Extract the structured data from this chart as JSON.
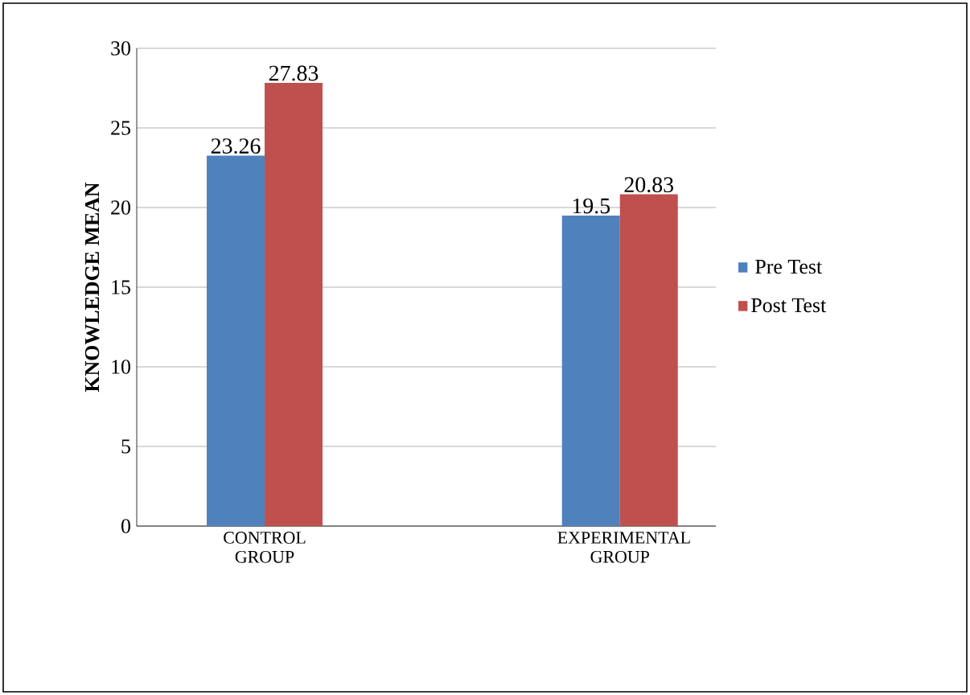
{
  "chart_data": {
    "type": "bar",
    "ylabel": "KNOWLEDGE MEAN",
    "categories": [
      "CONTROL GROUP",
      "EXPERIMENTAL GROUP"
    ],
    "series": [
      {
        "name": "Pre Test",
        "color": "#4f81bd",
        "values": [
          23.26,
          19.5
        ]
      },
      {
        "name": "Post Test",
        "color": "#c0504d",
        "values": [
          27.83,
          20.83
        ]
      }
    ],
    "ylim": [
      0,
      30
    ],
    "yticks": [
      0,
      5,
      10,
      15,
      20,
      25,
      30
    ],
    "grid": "y",
    "legend": "right",
    "data_labels": true
  }
}
